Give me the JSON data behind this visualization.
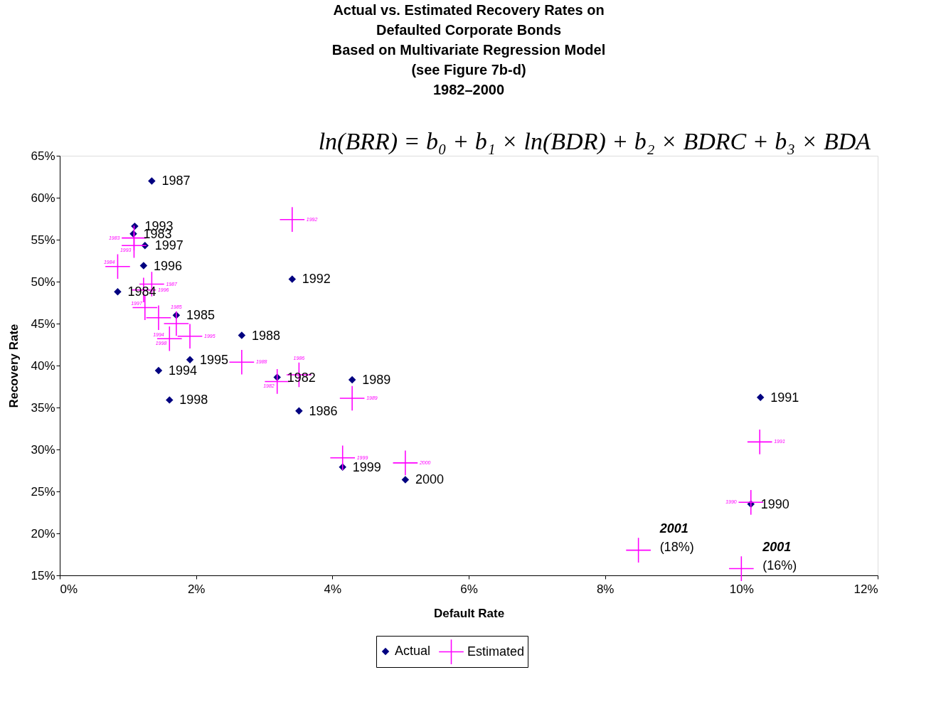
{
  "chart_data": {
    "type": "scatter",
    "title": "Actual vs. Estimated Recovery Rates on\nDefaulted Corporate Bonds\nBased on Multivariate Regression Model\n(see Figure 7b-d)\n1982–2000",
    "xlabel": "Default Rate",
    "ylabel": "Recovery Rate",
    "xlim": [
      0,
      12
    ],
    "xticks": [
      {
        "value": 0,
        "label": "0%"
      },
      {
        "value": 2,
        "label": "2%"
      },
      {
        "value": 4,
        "label": "4%"
      },
      {
        "value": 6,
        "label": "6%"
      },
      {
        "value": 8,
        "label": "8%"
      },
      {
        "value": 10,
        "label": "10%"
      },
      {
        "value": 12,
        "label": "12%"
      }
    ],
    "ylim": [
      15,
      65
    ],
    "yticks": [
      {
        "value": 15,
        "label": "15%"
      },
      {
        "value": 20,
        "label": "20%"
      },
      {
        "value": 25,
        "label": "25%"
      },
      {
        "value": 30,
        "label": "30%"
      },
      {
        "value": 35,
        "label": "35%"
      },
      {
        "value": 40,
        "label": "40%"
      },
      {
        "value": 45,
        "label": "45%"
      },
      {
        "value": 50,
        "label": "50%"
      },
      {
        "value": 55,
        "label": "55%"
      },
      {
        "value": 60,
        "label": "60%"
      },
      {
        "value": 65,
        "label": "65%"
      }
    ],
    "grid": false,
    "legend": "bottom",
    "series": [
      {
        "name": "Actual",
        "color": "#000080",
        "marker": "diamond",
        "x": [
          1.35,
          1.1,
          1.08,
          1.25,
          1.23,
          0.85,
          1.71,
          3.41,
          2.67,
          1.91,
          1.45,
          1.61,
          3.19,
          4.29,
          3.51,
          10.28,
          4.15,
          5.07,
          10.14
        ],
        "values": [
          62.0,
          56.6,
          55.7,
          54.3,
          51.9,
          48.8,
          46.0,
          50.3,
          43.6,
          40.7,
          39.4,
          35.9,
          38.6,
          38.3,
          34.6,
          36.2,
          27.9,
          26.4,
          23.5
        ]
      },
      {
        "name": "Estimated",
        "color": "#ff00ff",
        "marker": "cross",
        "x": [
          3.41,
          1.09,
          1.09,
          0.85,
          1.35,
          1.23,
          1.25,
          1.45,
          1.71,
          1.91,
          1.61,
          2.67,
          3.51,
          3.19,
          4.29,
          10.27,
          10.14,
          4.15,
          5.07,
          8.49,
          10.0
        ],
        "values": [
          57.4,
          55.2,
          54.3,
          51.8,
          49.7,
          49.0,
          46.9,
          45.7,
          45.0,
          43.5,
          43.2,
          40.4,
          38.9,
          38.1,
          36.1,
          30.9,
          23.7,
          29.0,
          28.4,
          18.0,
          15.8
        ]
      }
    ],
    "annotations": [
      "ln(BRR) = b₀ + b₁ × ln(BDR) + b₂ × BDRC + b₃ × BDA",
      {
        "text": "1987",
        "x": 1.35,
        "y": 62.0
      },
      {
        "text": "1993",
        "x": 1.1,
        "y": 56.6
      },
      {
        "text": "1983",
        "x": 1.08,
        "y": 55.7
      },
      {
        "text": "1997",
        "x": 1.25,
        "y": 54.3
      },
      {
        "text": "1996",
        "x": 1.23,
        "y": 51.9
      },
      {
        "text": "1984",
        "x": 0.85,
        "y": 48.8
      },
      {
        "text": "1985",
        "x": 1.71,
        "y": 46.0
      },
      {
        "text": "1992",
        "x": 3.41,
        "y": 50.3
      },
      {
        "text": "1988",
        "x": 2.67,
        "y": 43.6
      },
      {
        "text": "1995",
        "x": 1.91,
        "y": 40.7
      },
      {
        "text": "1994",
        "x": 1.45,
        "y": 39.4
      },
      {
        "text": "1998",
        "x": 1.61,
        "y": 35.9
      },
      {
        "text": "1982",
        "x": 3.19,
        "y": 38.6
      },
      {
        "text": "1989",
        "x": 4.29,
        "y": 38.3
      },
      {
        "text": "1986",
        "x": 3.51,
        "y": 34.6
      },
      {
        "text": "1991",
        "x": 10.28,
        "y": 36.2
      },
      {
        "text": "1999",
        "x": 4.15,
        "y": 27.9
      },
      {
        "text": "2000",
        "x": 5.07,
        "y": 26.4
      },
      {
        "text": "1990",
        "x": 10.14,
        "y": 23.5
      },
      {
        "text": "1992",
        "x": 3.41,
        "y": 57.4
      },
      {
        "text": "1983",
        "x": 1.09,
        "y": 55.2
      },
      {
        "text": "1993",
        "x": 1.09,
        "y": 54.3
      },
      {
        "text": "1984",
        "x": 0.85,
        "y": 51.8
      },
      {
        "text": "1987",
        "x": 1.35,
        "y": 49.7
      },
      {
        "text": "1996",
        "x": 1.23,
        "y": 49.0
      },
      {
        "text": "1997",
        "x": 1.25,
        "y": 46.9
      },
      {
        "text": "1994",
        "x": 1.45,
        "y": 45.7
      },
      {
        "text": "1985",
        "x": 1.71,
        "y": 45.0
      },
      {
        "text": "1995",
        "x": 1.91,
        "y": 43.5
      },
      {
        "text": "1998",
        "x": 1.61,
        "y": 43.2
      },
      {
        "text": "1988",
        "x": 2.67,
        "y": 40.4
      },
      {
        "text": "1986",
        "x": 3.51,
        "y": 38.9
      },
      {
        "text": "1982",
        "x": 3.19,
        "y": 38.1
      },
      {
        "text": "1989",
        "x": 4.29,
        "y": 36.1
      },
      {
        "text": "1991",
        "x": 10.27,
        "y": 30.9
      },
      {
        "text": "1990",
        "x": 10.14,
        "y": 23.7
      },
      {
        "text": "1999",
        "x": 4.15,
        "y": 29.0
      },
      {
        "text": "2000",
        "x": 5.07,
        "y": 28.4
      },
      {
        "text": "2001\n(18%)",
        "x": 8.49,
        "y": 18.0
      },
      {
        "text": "2001\n(16%)",
        "x": 10.0,
        "y": 15.8
      }
    ]
  }
}
